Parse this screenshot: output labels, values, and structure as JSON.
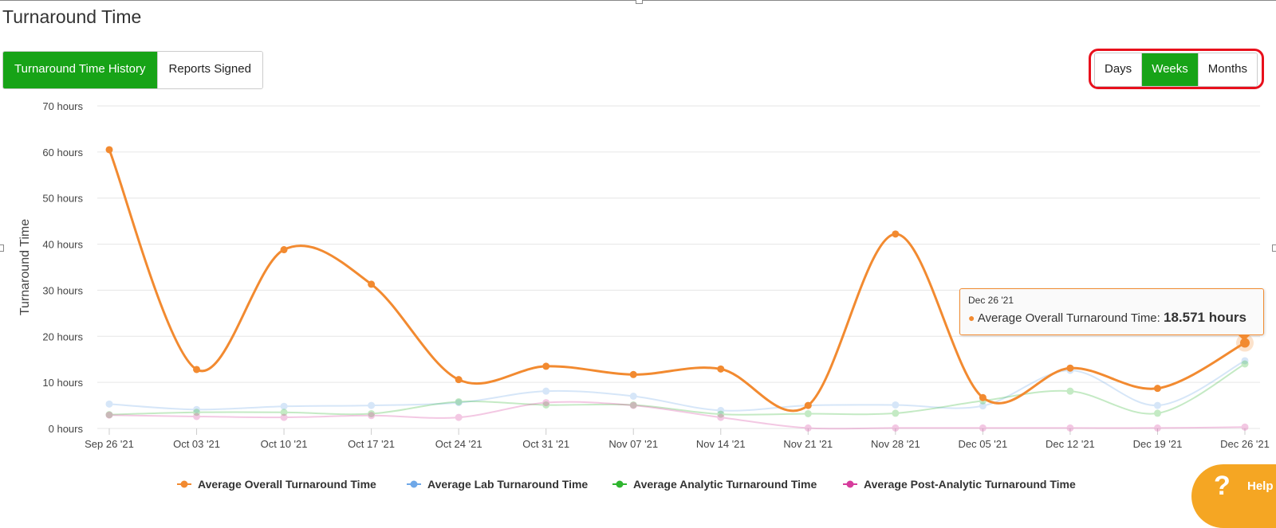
{
  "page": {
    "title": "Turnaround Time"
  },
  "tabs": [
    {
      "label": "Turnaround Time History",
      "active": true
    },
    {
      "label": "Reports Signed",
      "active": false
    }
  ],
  "range": {
    "buttons": [
      {
        "label": "Days",
        "active": false
      },
      {
        "label": "Weeks",
        "active": true
      },
      {
        "label": "Months",
        "active": false
      }
    ]
  },
  "chart_data": {
    "type": "line",
    "ylabel": "Turnaround Time",
    "ylim": [
      0,
      70
    ],
    "y_ticks": [
      {
        "value": 0,
        "label": "0 hours"
      },
      {
        "value": 10,
        "label": "10 hours"
      },
      {
        "value": 20,
        "label": "20 hours"
      },
      {
        "value": 30,
        "label": "30 hours"
      },
      {
        "value": 40,
        "label": "40 hours"
      },
      {
        "value": 50,
        "label": "50 hours"
      },
      {
        "value": 60,
        "label": "60 hours"
      },
      {
        "value": 70,
        "label": "70 hours"
      }
    ],
    "categories": [
      "Sep 26 '21",
      "Oct 03 '21",
      "Oct 10 '21",
      "Oct 17 '21",
      "Oct 24 '21",
      "Oct 31 '21",
      "Nov 07 '21",
      "Nov 14 '21",
      "Nov 21 '21",
      "Nov 28 '21",
      "Dec 05 '21",
      "Dec 12 '21",
      "Dec 19 '21",
      "Dec 26 '21"
    ],
    "grid": true,
    "legend_position": "bottom",
    "series": [
      {
        "name": "Average Overall Turnaround Time",
        "color": "#f28a30",
        "highlighted": true,
        "values": [
          60.5,
          12.8,
          38.8,
          31.3,
          10.6,
          13.5,
          11.7,
          12.9,
          5.0,
          42.2,
          6.7,
          13.1,
          8.7,
          18.571
        ]
      },
      {
        "name": "Average Lab Turnaround Time",
        "color": "#6fa8e8",
        "highlighted": false,
        "values": [
          5.3,
          4.1,
          4.8,
          5.0,
          5.6,
          8.1,
          7.0,
          3.9,
          5.0,
          5.1,
          4.9,
          12.6,
          5.0,
          14.7
        ]
      },
      {
        "name": "Average Analytic Turnaround Time",
        "color": "#2fb52f",
        "highlighted": false,
        "values": [
          3.0,
          3.5,
          3.5,
          3.2,
          5.8,
          5.1,
          5.1,
          3.1,
          3.2,
          3.3,
          6.0,
          8.1,
          3.3,
          14.0
        ]
      },
      {
        "name": "Average Post-Analytic Turnaround Time",
        "color": "#d63c9c",
        "highlighted": false,
        "values": [
          2.9,
          2.6,
          2.4,
          2.8,
          2.4,
          5.6,
          5.0,
          2.4,
          0.1,
          0.1,
          0.1,
          0.1,
          0.1,
          0.3
        ]
      }
    ],
    "tooltip": {
      "date": "Dec 26 '21",
      "series": "Average Overall Turnaround Time:",
      "value": "18.571 hours"
    }
  },
  "help": {
    "label": "Help"
  }
}
